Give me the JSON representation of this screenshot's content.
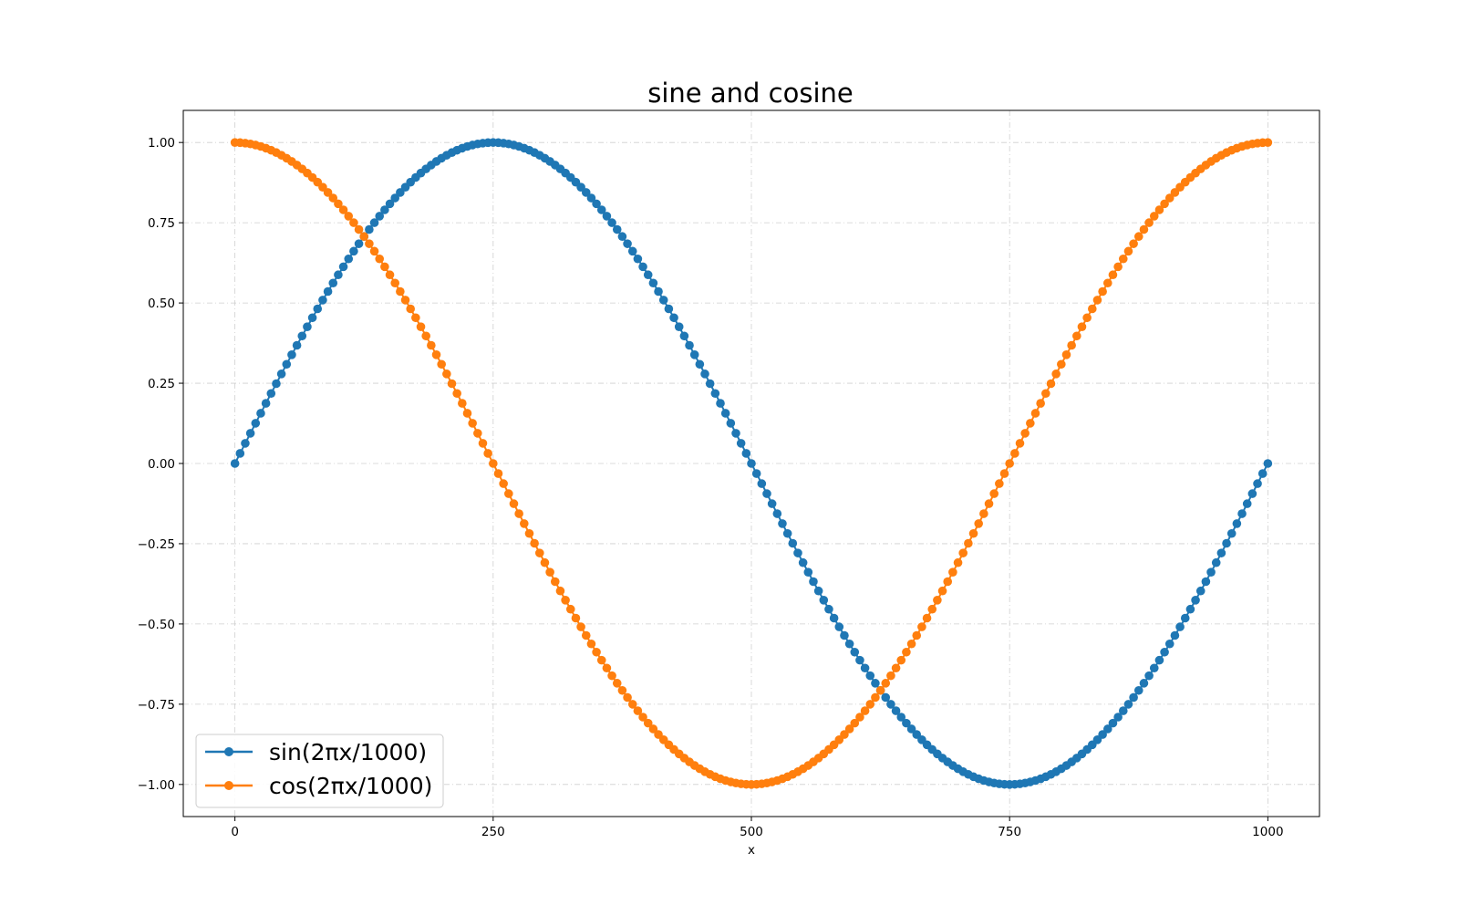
{
  "chart_data": {
    "type": "line",
    "title": "sine and cosine",
    "xlabel": "x",
    "ylabel": "",
    "xlim": [
      -50,
      1050
    ],
    "ylim": [
      -1.1,
      1.1
    ],
    "x_ticks": [
      0,
      250,
      500,
      750,
      1000
    ],
    "x_tick_labels": [
      "0",
      "250",
      "500",
      "750",
      "1000"
    ],
    "y_ticks": [
      1.0,
      0.75,
      0.5,
      0.25,
      0.0,
      -0.25,
      -0.5,
      -0.75,
      -1.0
    ],
    "y_tick_labels": [
      "1.00",
      "0.75",
      "0.50",
      "0.25",
      "0.00",
      "−0.25",
      "−0.50",
      "−0.75",
      "−1.00"
    ],
    "grid": true,
    "grid_style": "dash-dot",
    "legend_position": "lower-left",
    "series": [
      {
        "name": "sin(2πx/1000)",
        "function": "sin",
        "color": "#1f77b4",
        "marker": "circle",
        "x": [
          0,
          1000
        ],
        "sample_step": 5,
        "y_at_ticks": {
          "0": 0.0,
          "250": 1.0,
          "500": 0.0,
          "750": -1.0,
          "1000": 0.0
        }
      },
      {
        "name": "cos(2πx/1000)",
        "function": "cos",
        "color": "#ff7f0e",
        "marker": "circle",
        "x": [
          0,
          1000
        ],
        "sample_step": 5,
        "y_at_ticks": {
          "0": 1.0,
          "250": 0.0,
          "500": -1.0,
          "750": 0.0,
          "1000": 1.0
        }
      }
    ]
  }
}
